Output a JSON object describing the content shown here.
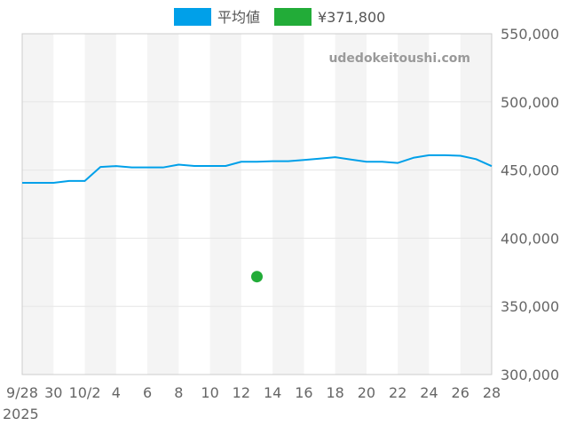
{
  "chart_data": {
    "type": "line",
    "watermark": "udedokeitoushi.com",
    "legend": {
      "placement": "top-center",
      "items": [
        {
          "name": "平均値",
          "color": "#00a0e9",
          "kind": "line"
        },
        {
          "name": "¥371,800",
          "color": "#22ac38",
          "kind": "point"
        }
      ]
    },
    "x_range": [
      "2025-09-28",
      "2025-10-28"
    ],
    "x_ticks": [
      {
        "date": "2025-09-28",
        "label": "9/28"
      },
      {
        "date": "2025-09-30",
        "label": "30"
      },
      {
        "date": "2025-10-02",
        "label": "10/2"
      },
      {
        "date": "2025-10-04",
        "label": "4"
      },
      {
        "date": "2025-10-06",
        "label": "6"
      },
      {
        "date": "2025-10-08",
        "label": "8"
      },
      {
        "date": "2025-10-10",
        "label": "10"
      },
      {
        "date": "2025-10-12",
        "label": "12"
      },
      {
        "date": "2025-10-14",
        "label": "14"
      },
      {
        "date": "2025-10-16",
        "label": "16"
      },
      {
        "date": "2025-10-18",
        "label": "18"
      },
      {
        "date": "2025-10-20",
        "label": "20"
      },
      {
        "date": "2025-10-22",
        "label": "22"
      },
      {
        "date": "2025-10-24",
        "label": "24"
      },
      {
        "date": "2025-10-26",
        "label": "26"
      },
      {
        "date": "2025-10-28",
        "label": "28"
      }
    ],
    "year_label": "2025",
    "y_axis": {
      "position": "right",
      "min": 300000,
      "max": 550000,
      "ticks": [
        300000,
        350000,
        400000,
        450000,
        500000,
        550000
      ],
      "tick_labels": [
        "300,000",
        "350,000",
        "400,000",
        "450,000",
        "500,000",
        "550,000"
      ]
    },
    "grid": true,
    "alternating_bands": true,
    "colors": {
      "band": "#f4f4f4",
      "grid": "#e6e6e6",
      "axis": "#cccccc"
    },
    "series": [
      {
        "name": "平均値",
        "color": "#00a0e9",
        "type": "line",
        "points": [
          {
            "x": "2025-09-28",
            "y": 440600
          },
          {
            "x": "2025-09-29",
            "y": 440600
          },
          {
            "x": "2025-09-30",
            "y": 440600
          },
          {
            "x": "2025-10-01",
            "y": 442000
          },
          {
            "x": "2025-10-02",
            "y": 442000
          },
          {
            "x": "2025-10-03",
            "y": 452300
          },
          {
            "x": "2025-10-04",
            "y": 452900
          },
          {
            "x": "2025-10-05",
            "y": 451900
          },
          {
            "x": "2025-10-06",
            "y": 451900
          },
          {
            "x": "2025-10-07",
            "y": 451900
          },
          {
            "x": "2025-10-08",
            "y": 454000
          },
          {
            "x": "2025-10-09",
            "y": 453000
          },
          {
            "x": "2025-10-10",
            "y": 453000
          },
          {
            "x": "2025-10-11",
            "y": 453000
          },
          {
            "x": "2025-10-12",
            "y": 456100
          },
          {
            "x": "2025-10-13",
            "y": 456100
          },
          {
            "x": "2025-10-14",
            "y": 456500
          },
          {
            "x": "2025-10-15",
            "y": 456500
          },
          {
            "x": "2025-10-16",
            "y": 457400
          },
          {
            "x": "2025-10-17",
            "y": 458400
          },
          {
            "x": "2025-10-18",
            "y": 459400
          },
          {
            "x": "2025-10-19",
            "y": 457700
          },
          {
            "x": "2025-10-20",
            "y": 456100
          },
          {
            "x": "2025-10-21",
            "y": 456100
          },
          {
            "x": "2025-10-22",
            "y": 455200
          },
          {
            "x": "2025-10-23",
            "y": 459000
          },
          {
            "x": "2025-10-24",
            "y": 460900
          },
          {
            "x": "2025-10-25",
            "y": 460900
          },
          {
            "x": "2025-10-26",
            "y": 460500
          },
          {
            "x": "2025-10-27",
            "y": 458000
          },
          {
            "x": "2025-10-28",
            "y": 452900
          }
        ]
      },
      {
        "name": "¥371,800",
        "color": "#22ac38",
        "type": "scatter",
        "points": [
          {
            "x": "2025-10-13",
            "y": 371800
          }
        ]
      }
    ]
  }
}
